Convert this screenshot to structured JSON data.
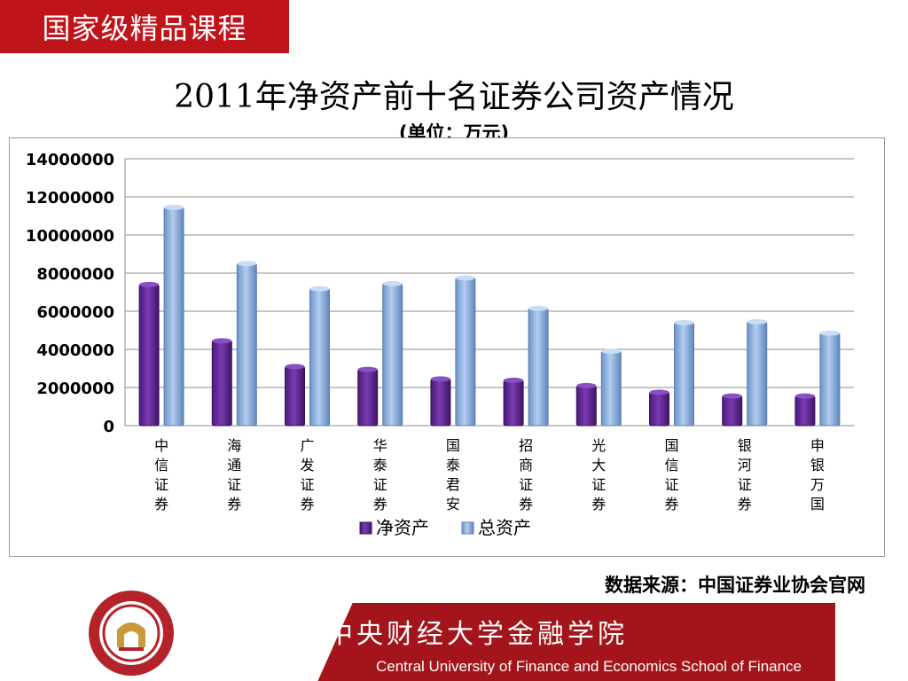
{
  "badge": {
    "text": "国家级精品课程"
  },
  "header": {
    "title": "2011年净资产前十名证券公司资产情况",
    "subtitle": "(单位：万元)"
  },
  "source_note": "数据来源：中国证券业协会官网",
  "footer": {
    "cn": "中央财经大学金融学院",
    "en": "Central University of Finance and Economics   School of Finance"
  },
  "colors": {
    "badge": "#c0141b",
    "footer": "#a3151a",
    "net_assets": "#6a2b9e",
    "total_assets": "#8fb5e3"
  },
  "chart_data": {
    "type": "bar",
    "title": "2011年净资产前十名证券公司资产情况",
    "subtitle": "(单位：万元)",
    "categories": [
      "中信证券",
      "海通证券",
      "广发证券",
      "华泰证券",
      "国泰君安",
      "招商证券",
      "光大证券",
      "国信证券",
      "银河证券",
      "申银万国"
    ],
    "series": [
      {
        "name": "净资产",
        "color": "#6a2b9e",
        "values": [
          7400000,
          4450000,
          3100000,
          2950000,
          2450000,
          2380000,
          2100000,
          1750000,
          1550000,
          1550000
        ]
      },
      {
        "name": "总资产",
        "color": "#8fb5e3",
        "values": [
          11450000,
          8500000,
          7180000,
          7450000,
          7750000,
          6150000,
          3900000,
          5400000,
          5450000,
          4850000
        ]
      }
    ],
    "ylim": [
      0,
      14000000
    ],
    "yticks": [
      "0",
      "2000000",
      "4000000",
      "6000000",
      "8000000",
      "10000000",
      "12000000",
      "14000000"
    ],
    "grid": true,
    "legend": "bottom",
    "xlabel": "",
    "ylabel": ""
  }
}
